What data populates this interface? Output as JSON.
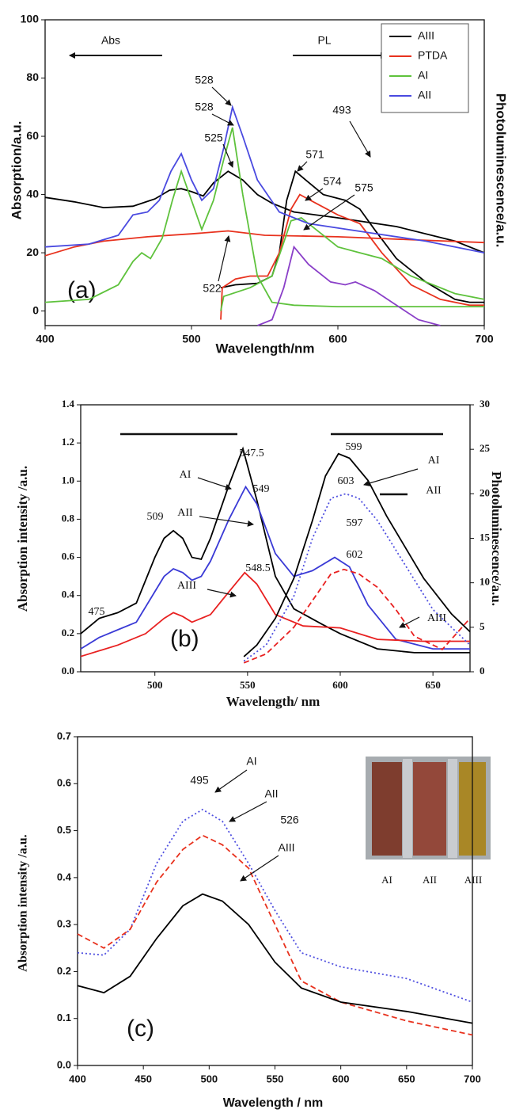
{
  "chart_data": [
    {
      "type": "line",
      "panel_label": "(a)",
      "xlabel": "Wavelength/nm",
      "ylabel": "Absorption/a.u.",
      "y2label": "Photoluminescence/a.u.",
      "xlim": [
        400,
        700
      ],
      "xticks": [
        400,
        500,
        600,
        700
      ],
      "ylim": [
        -5,
        100
      ],
      "yticks": [
        0,
        20,
        40,
        60,
        80,
        100
      ],
      "legend": "top-right",
      "annotations": [
        "Abs",
        "PL",
        "493",
        "528",
        "528",
        "525",
        "522",
        "571",
        "574",
        "575"
      ],
      "series": [
        {
          "name": "AIII",
          "color": "#000000",
          "x": [
            400,
            420,
            440,
            460,
            475,
            485,
            493,
            500,
            508,
            515,
            525,
            535,
            545,
            555,
            570,
            600,
            640,
            680,
            700
          ],
          "values": [
            39,
            37.5,
            35.5,
            36,
            38.5,
            41.5,
            42,
            41,
            39.5,
            44,
            48,
            45,
            40,
            37,
            34,
            32,
            29,
            24,
            20
          ]
        },
        {
          "color": "#000000",
          "x": [
            520,
            530,
            545,
            555,
            560,
            565,
            571,
            578,
            590,
            605,
            615,
            625,
            640,
            660,
            680,
            690,
            700
          ],
          "values": [
            8,
            9,
            9.5,
            12,
            20,
            38,
            48,
            45,
            40,
            38,
            35,
            28,
            18,
            10,
            4,
            3,
            3
          ]
        },
        {
          "name": "PTDA",
          "color": "#e8321e",
          "x": [
            400,
            420,
            440,
            470,
            500,
            525,
            550,
            600,
            650,
            700
          ],
          "values": [
            19,
            22,
            24,
            25.5,
            26.5,
            27.5,
            26,
            25.5,
            24.5,
            23.5
          ]
        },
        {
          "color": "#e8321e",
          "x": [
            520,
            521,
            530,
            540,
            552,
            560,
            568,
            574,
            585,
            600,
            615,
            630,
            650,
            670,
            690,
            700
          ],
          "values": [
            -3,
            8,
            11,
            12,
            12,
            20,
            35,
            40,
            37,
            33,
            30,
            20,
            9,
            4,
            2,
            2
          ]
        },
        {
          "name": "AI",
          "color": "#5ec23c",
          "x": [
            400,
            430,
            450,
            460,
            466,
            472,
            480,
            487,
            493,
            500,
            507,
            515,
            522,
            528,
            535,
            545,
            555,
            570,
            600,
            700
          ],
          "values": [
            3,
            4,
            9,
            17,
            20,
            18,
            25,
            38,
            48,
            38,
            28,
            38,
            52,
            63,
            40,
            12,
            3,
            2,
            1.5,
            1.5
          ]
        },
        {
          "color": "#5ec23c",
          "x": [
            520,
            522,
            540,
            555,
            562,
            568,
            575,
            585,
            600,
            615,
            630,
            650,
            680,
            700
          ],
          "values": [
            0,
            5,
            8,
            12,
            22,
            31,
            32,
            28,
            22,
            20,
            18,
            12,
            6,
            4
          ]
        },
        {
          "name": "AII",
          "color": "#4a4ae0",
          "x": [
            400,
            430,
            450,
            460,
            470,
            478,
            486,
            493,
            500,
            507,
            515,
            522,
            528,
            535,
            545,
            560,
            580,
            620,
            660,
            700
          ],
          "values": [
            22,
            23,
            26,
            33,
            34,
            38,
            48,
            54,
            45,
            38,
            42,
            56,
            70,
            60,
            45,
            34,
            30,
            27,
            24,
            20
          ]
        },
        {
          "color": "#8a3fc8",
          "x": [
            545,
            555,
            563,
            570,
            580,
            595,
            605,
            612,
            625,
            640,
            655,
            670
          ],
          "values": [
            -5,
            -3,
            8,
            22,
            16,
            10,
            9,
            10,
            7,
            2,
            -3,
            -5
          ]
        }
      ]
    },
    {
      "type": "line",
      "panel_label": "(b)",
      "xlabel": "Wavelength/ nm",
      "ylabel": "Absorption intensity /a.u.",
      "y2label": "Photoluminescence/a.u.",
      "xlim": [
        460,
        670
      ],
      "xticks": [
        500,
        550,
        600,
        650
      ],
      "ylim": [
        0,
        1.4
      ],
      "yticks": [
        {
          "value": 0,
          "label": "0.0"
        },
        0.2,
        0.4,
        0.6,
        0.8,
        {
          "value": 1,
          "label": "1.0"
        },
        1.2,
        1.4
      ],
      "y2lim": [
        0,
        30
      ],
      "y2ticks": [
        0,
        5,
        10,
        15,
        20,
        25,
        30
      ],
      "annotations": [
        "547.5",
        "AI",
        "549",
        "AII",
        "509",
        "548.5",
        "AIII",
        "475",
        "599",
        "AI",
        "603",
        "AII",
        "597",
        "602",
        "AIII"
      ],
      "series": [
        {
          "color": "#000000",
          "x": [
            460,
            470,
            480,
            490,
            500,
            505,
            510,
            515,
            520,
            525,
            530,
            540,
            547.5,
            555,
            565,
            575,
            590,
            600,
            620,
            640,
            670
          ],
          "values": [
            0.2,
            0.28,
            0.31,
            0.36,
            0.6,
            0.7,
            0.74,
            0.7,
            0.6,
            0.59,
            0.7,
            0.98,
            1.17,
            0.9,
            0.5,
            0.33,
            0.25,
            0.2,
            0.12,
            0.1,
            0.1
          ]
        },
        {
          "color": "#3a3ad6",
          "x": [
            460,
            470,
            480,
            490,
            500,
            505,
            510,
            515,
            520,
            525,
            530,
            540,
            549,
            555,
            565,
            575,
            585,
            597,
            605,
            615,
            630,
            650,
            670
          ],
          "values": [
            0.12,
            0.18,
            0.22,
            0.26,
            0.42,
            0.5,
            0.54,
            0.52,
            0.48,
            0.5,
            0.58,
            0.8,
            0.97,
            0.88,
            0.62,
            0.5,
            0.53,
            0.6,
            0.55,
            0.35,
            0.17,
            0.12,
            0.12
          ]
        },
        {
          "color": "#e82020",
          "x": [
            460,
            480,
            495,
            505,
            510,
            515,
            520,
            530,
            540,
            548.5,
            555,
            565,
            580,
            600,
            620,
            645,
            670
          ],
          "values": [
            0.08,
            0.14,
            0.2,
            0.28,
            0.31,
            0.29,
            0.26,
            0.3,
            0.42,
            0.52,
            0.46,
            0.3,
            0.24,
            0.23,
            0.17,
            0.16,
            0.16
          ]
        },
        {
          "color": "#000000",
          "axis": "y2",
          "x": [
            548,
            555,
            565,
            575,
            585,
            592,
            599,
            605,
            615,
            625,
            635,
            645,
            660,
            670
          ],
          "values": [
            1.7,
            3,
            6,
            10.5,
            17,
            22,
            24.5,
            24,
            21.5,
            17.5,
            14,
            10.5,
            6.5,
            4.5
          ]
        },
        {
          "color": "#5050e0",
          "axis": "y2",
          "dash": "dotted",
          "x": [
            548,
            560,
            575,
            585,
            595,
            603,
            610,
            620,
            635,
            650,
            670
          ],
          "values": [
            1.2,
            3,
            8.5,
            15,
            19.5,
            20,
            19.5,
            17,
            12,
            7,
            3
          ]
        },
        {
          "color": "#e82020",
          "axis": "y2",
          "dash": "dashed",
          "x": [
            548,
            560,
            575,
            585,
            595,
            602,
            610,
            620,
            630,
            640,
            655,
            670
          ],
          "values": [
            1,
            2,
            5,
            8,
            11,
            11.5,
            11,
            9.5,
            7,
            4,
            2.5,
            6
          ]
        }
      ]
    },
    {
      "type": "line",
      "panel_label": "(c)",
      "xlabel": "Wavelength / nm",
      "ylabel": "Absorption intensity /a.u.",
      "xlim": [
        400,
        700
      ],
      "xticks": [
        400,
        450,
        500,
        550,
        600,
        650,
        700
      ],
      "ylim": [
        0,
        0.7
      ],
      "yticks": [
        {
          "value": 0,
          "label": "0.0"
        },
        0.1,
        0.2,
        0.3,
        0.4,
        0.5,
        0.6,
        0.7
      ],
      "annotations": [
        "495",
        "AI",
        "AII",
        "526",
        "AIII"
      ],
      "inset_labels": [
        "AI",
        "AII",
        "AIII"
      ],
      "series": [
        {
          "color": "#5050e0",
          "dash": "dotted",
          "x": [
            400,
            420,
            440,
            460,
            480,
            495,
            510,
            530,
            550,
            570,
            600,
            650,
            700
          ],
          "values": [
            0.24,
            0.235,
            0.29,
            0.43,
            0.52,
            0.545,
            0.52,
            0.43,
            0.33,
            0.24,
            0.21,
            0.185,
            0.135
          ]
        },
        {
          "color": "#e8321e",
          "dash": "dashed",
          "x": [
            400,
            420,
            440,
            460,
            480,
            495,
            510,
            530,
            550,
            570,
            600,
            650,
            700
          ],
          "values": [
            0.28,
            0.25,
            0.29,
            0.39,
            0.46,
            0.49,
            0.47,
            0.42,
            0.3,
            0.18,
            0.135,
            0.095,
            0.065
          ]
        },
        {
          "color": "#000000",
          "x": [
            400,
            420,
            440,
            460,
            480,
            495,
            510,
            530,
            550,
            570,
            600,
            650,
            700
          ],
          "values": [
            0.17,
            0.155,
            0.19,
            0.27,
            0.34,
            0.365,
            0.35,
            0.3,
            0.22,
            0.165,
            0.135,
            0.115,
            0.09
          ]
        }
      ]
    }
  ]
}
